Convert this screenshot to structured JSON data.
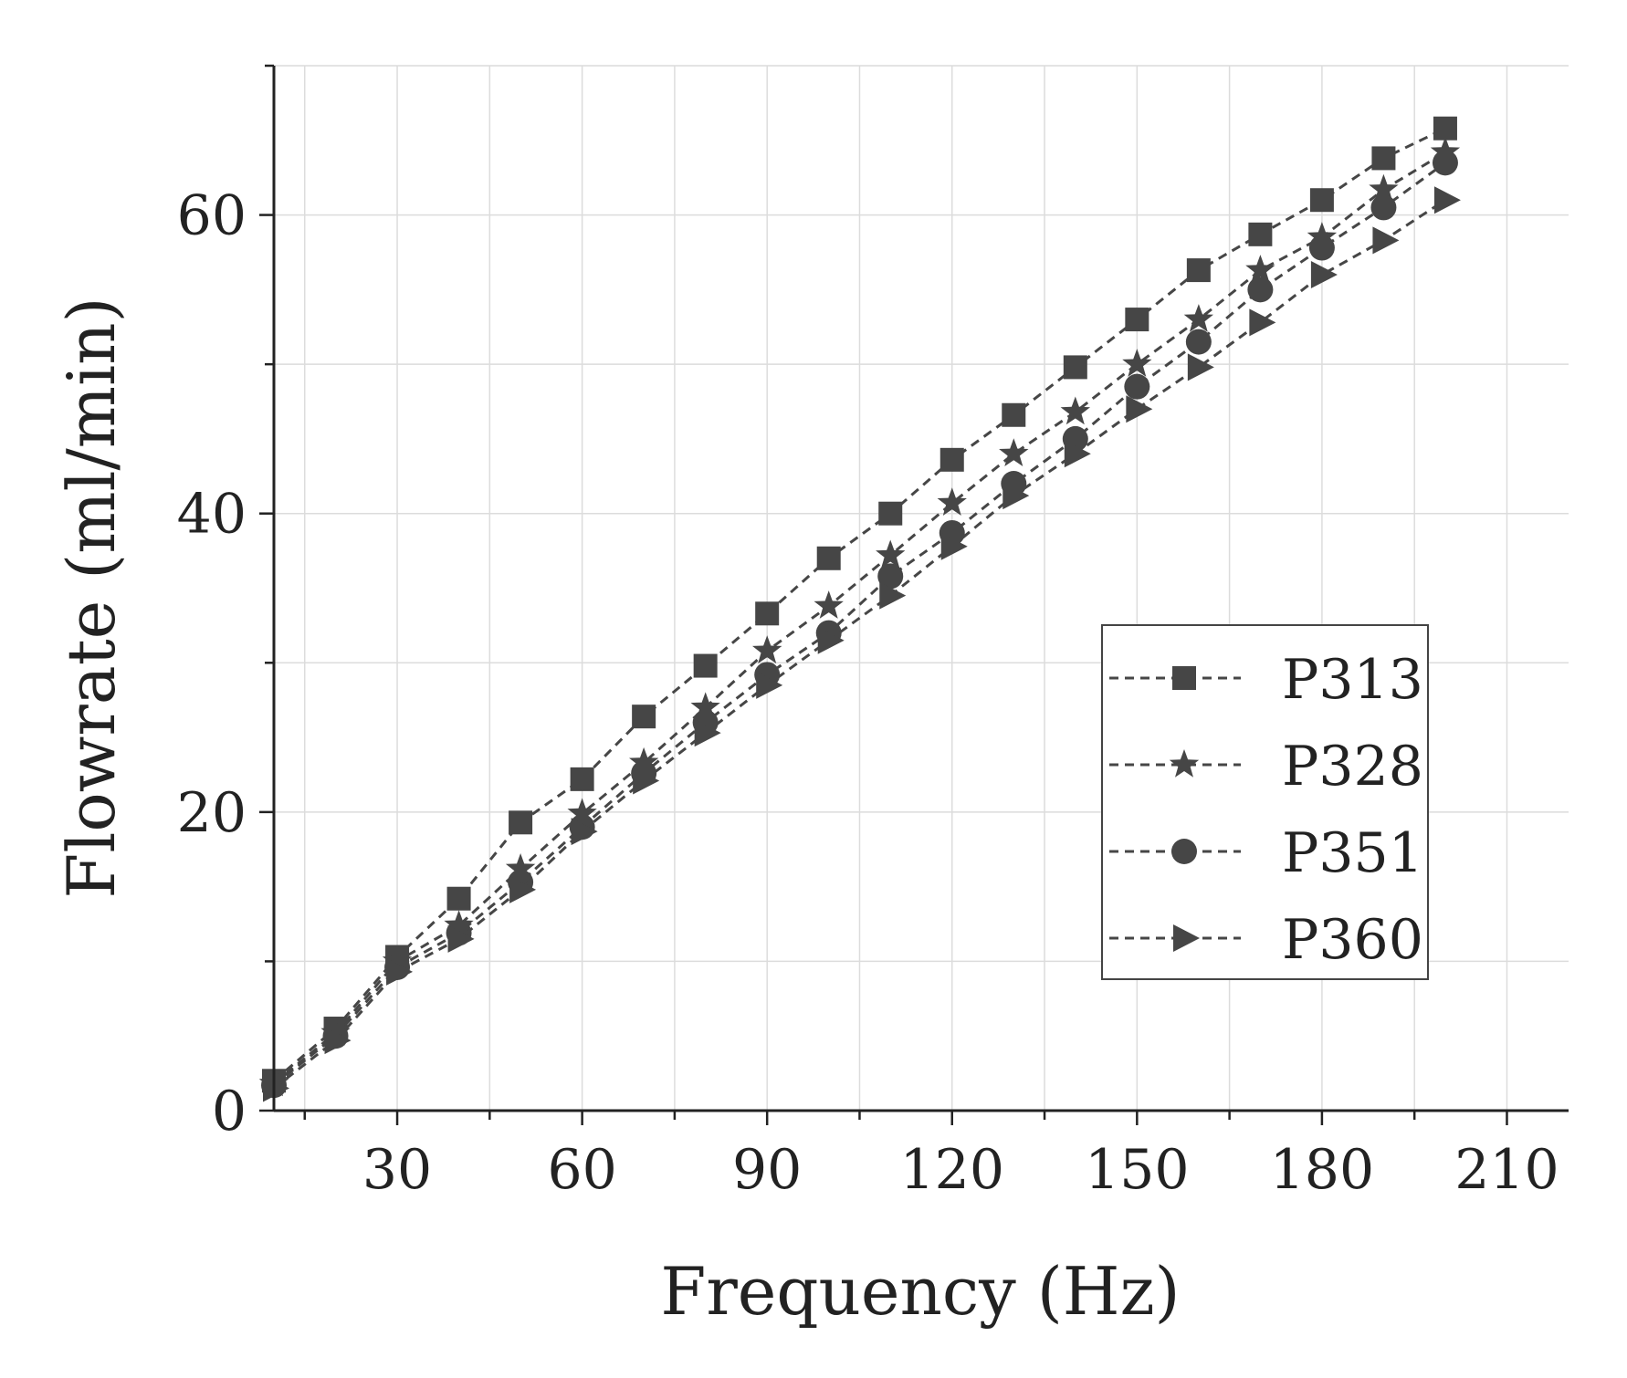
{
  "chart_data": {
    "type": "line",
    "title": "",
    "xlabel": "Frequency (Hz)",
    "ylabel": "Flowrate (ml/min)",
    "xlim": [
      10,
      220
    ],
    "ylim": [
      0,
      70
    ],
    "xticks": [
      30,
      60,
      90,
      120,
      150,
      180,
      210
    ],
    "yticks": [
      0,
      20,
      40,
      60
    ],
    "x_minor_step": 15,
    "y_minor_step": 10,
    "grid": true,
    "legend_position": "right",
    "line_style": "dashed",
    "colors": {
      "series": "#464646",
      "grid": "#dcdcdc",
      "axis": "#222222"
    },
    "x": [
      10,
      20,
      30,
      40,
      50,
      60,
      70,
      80,
      90,
      100,
      110,
      120,
      130,
      140,
      150,
      160,
      170,
      180,
      190,
      200
    ],
    "series": [
      {
        "name": "P313",
        "marker": "square",
        "values": [
          2.0,
          5.5,
          10.3,
          14.2,
          19.3,
          22.2,
          26.4,
          29.8,
          33.3,
          37.0,
          40.0,
          43.6,
          46.6,
          49.8,
          53.0,
          56.3,
          58.7,
          61.0,
          63.8,
          65.8
        ]
      },
      {
        "name": "P328",
        "marker": "star",
        "values": [
          1.8,
          5.2,
          10.0,
          12.4,
          16.2,
          19.9,
          23.3,
          27.0,
          30.8,
          33.8,
          37.2,
          40.7,
          44.0,
          46.8,
          50.0,
          53.0,
          56.3,
          58.5,
          61.7,
          64.2
        ]
      },
      {
        "name": "P351",
        "marker": "circle",
        "values": [
          1.7,
          5.0,
          9.6,
          11.9,
          15.3,
          19.0,
          22.6,
          26.0,
          29.2,
          32.0,
          35.8,
          38.7,
          42.0,
          45.0,
          48.5,
          51.5,
          55.0,
          57.8,
          60.5,
          63.5
        ]
      },
      {
        "name": "P360",
        "marker": "triangle-right",
        "values": [
          1.5,
          4.7,
          9.3,
          11.5,
          14.8,
          18.7,
          22.1,
          25.3,
          28.5,
          31.5,
          34.5,
          37.8,
          41.2,
          44.0,
          47.0,
          49.8,
          52.8,
          56.0,
          58.3,
          61.0
        ]
      }
    ]
  }
}
